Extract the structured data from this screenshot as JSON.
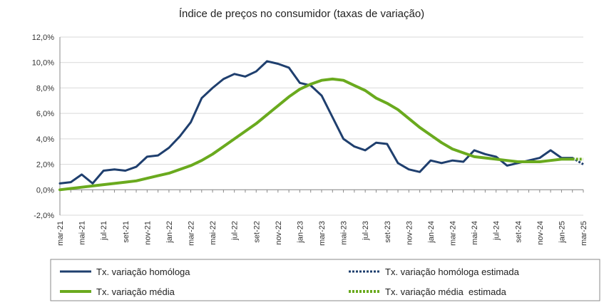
{
  "chart_data": {
    "type": "line",
    "title": "Índice de preços no consumidor  (taxas  de variação)",
    "xlabel": "",
    "ylabel": "",
    "ylim": [
      -2.0,
      12.0
    ],
    "y_ticks": [
      "-2,0%",
      "0,0%",
      "2,0%",
      "4,0%",
      "6,0%",
      "8,0%",
      "10,0%",
      "12,0%"
    ],
    "y_tick_values": [
      -2,
      0,
      2,
      4,
      6,
      8,
      10,
      12
    ],
    "x": [
      "mar-21",
      "abr-21",
      "mai-21",
      "jun-21",
      "jul-21",
      "ago-21",
      "set-21",
      "out-21",
      "nov-21",
      "dez-21",
      "jan-22",
      "fev-22",
      "mar-22",
      "abr-22",
      "mai-22",
      "jun-22",
      "jul-22",
      "ago-22",
      "set-22",
      "out-22",
      "nov-22",
      "dez-22",
      "jan-23",
      "fev-23",
      "mar-23",
      "abr-23",
      "mai-23",
      "jun-23",
      "jul-23",
      "ago-23",
      "set-23",
      "out-23",
      "nov-23",
      "dez-23",
      "jan-24",
      "fev-24",
      "mar-24",
      "abr-24",
      "mai-24",
      "jun-24",
      "jul-24",
      "ago-24",
      "set-24",
      "out-24",
      "nov-24",
      "dez-24",
      "jan-25",
      "fev-25",
      "mar-25"
    ],
    "x_tick_labels": [
      "mar-21",
      "mai-21",
      "jul-21",
      "set-21",
      "nov-21",
      "jan-22",
      "mar-22",
      "mai-22",
      "jul-22",
      "set-22",
      "nov-22",
      "jan-23",
      "mar-23",
      "mai-23",
      "jul-23",
      "set-23",
      "nov-23",
      "jan-24",
      "mar-24",
      "mai-24",
      "jul-24",
      "set-24",
      "nov-24",
      "jan-25",
      "mar-25"
    ],
    "series": [
      {
        "name": "Tx. variação homóloga",
        "color": "#1f3f6e",
        "style": "solid",
        "values": [
          0.5,
          0.6,
          1.2,
          0.5,
          1.5,
          1.6,
          1.5,
          1.8,
          2.6,
          2.7,
          3.3,
          4.2,
          5.3,
          7.2,
          8.0,
          8.7,
          9.1,
          8.9,
          9.3,
          10.1,
          9.9,
          9.6,
          8.4,
          8.2,
          7.4,
          5.7,
          4.0,
          3.4,
          3.1,
          3.7,
          3.6,
          2.1,
          1.6,
          1.4,
          2.3,
          2.1,
          2.3,
          2.2,
          3.1,
          2.8,
          2.6,
          1.9,
          2.1,
          2.3,
          2.5,
          3.1,
          2.5,
          2.5,
          null
        ]
      },
      {
        "name": "Tx. variação homóloga estimada",
        "color": "#1f3f6e",
        "style": "dotted",
        "values": [
          null,
          null,
          null,
          null,
          null,
          null,
          null,
          null,
          null,
          null,
          null,
          null,
          null,
          null,
          null,
          null,
          null,
          null,
          null,
          null,
          null,
          null,
          null,
          null,
          null,
          null,
          null,
          null,
          null,
          null,
          null,
          null,
          null,
          null,
          null,
          null,
          null,
          null,
          null,
          null,
          null,
          null,
          null,
          null,
          null,
          null,
          null,
          2.5,
          2.0
        ]
      },
      {
        "name": "Tx. variação média",
        "color": "#6aaa1e",
        "style": "solid",
        "values": [
          0.0,
          0.1,
          0.2,
          0.3,
          0.4,
          0.5,
          0.6,
          0.7,
          0.9,
          1.1,
          1.3,
          1.6,
          1.9,
          2.3,
          2.8,
          3.4,
          4.0,
          4.6,
          5.2,
          5.9,
          6.6,
          7.3,
          7.9,
          8.3,
          8.6,
          8.7,
          8.6,
          8.2,
          7.8,
          7.2,
          6.8,
          6.3,
          5.6,
          4.9,
          4.3,
          3.7,
          3.2,
          2.9,
          2.6,
          2.5,
          2.4,
          2.3,
          2.2,
          2.2,
          2.2,
          2.3,
          2.4,
          2.4,
          null
        ]
      },
      {
        "name": "Tx. variação média  estimada",
        "color": "#6aaa1e",
        "style": "dotted",
        "values": [
          null,
          null,
          null,
          null,
          null,
          null,
          null,
          null,
          null,
          null,
          null,
          null,
          null,
          null,
          null,
          null,
          null,
          null,
          null,
          null,
          null,
          null,
          null,
          null,
          null,
          null,
          null,
          null,
          null,
          null,
          null,
          null,
          null,
          null,
          null,
          null,
          null,
          null,
          null,
          null,
          null,
          null,
          null,
          null,
          null,
          null,
          null,
          2.4,
          2.4
        ]
      }
    ],
    "grid": "horizontal",
    "legend_position": "bottom"
  }
}
